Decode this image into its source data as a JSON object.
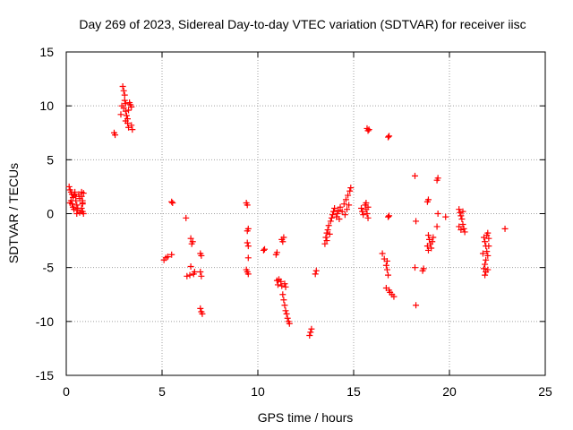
{
  "chart_data": {
    "type": "scatter",
    "title": "Day 269 of 2023, Sidereal Day-to-day VTEC variation (SDTVAR) for receiver iisc",
    "xlabel": "GPS time / hours",
    "ylabel": "SDTVAR / TECUs",
    "xlim": [
      0,
      25
    ],
    "ylim": [
      -15,
      15
    ],
    "xticks": [
      0,
      5,
      10,
      15,
      20,
      25
    ],
    "yticks": [
      -15,
      -10,
      -5,
      0,
      5,
      10,
      15
    ],
    "grid": true,
    "marker": "plus",
    "color": "#ff0000",
    "series": [
      {
        "name": "SDTVAR",
        "points": [
          [
            0.15,
            2.5
          ],
          [
            0.2,
            2.2
          ],
          [
            0.25,
            2.0
          ],
          [
            0.3,
            1.8
          ],
          [
            0.35,
            1.5
          ],
          [
            0.25,
            1.2
          ],
          [
            0.3,
            0.9
          ],
          [
            0.35,
            0.6
          ],
          [
            0.4,
            0.4
          ],
          [
            0.2,
            1.0
          ],
          [
            0.45,
            2.0
          ],
          [
            0.5,
            1.6
          ],
          [
            0.5,
            1.2
          ],
          [
            0.55,
            0.8
          ],
          [
            0.6,
            0.5
          ],
          [
            0.6,
            0.3
          ],
          [
            0.65,
            1.8
          ],
          [
            0.7,
            1.4
          ],
          [
            0.8,
            2.0
          ],
          [
            0.8,
            1.6
          ],
          [
            0.85,
            1.2
          ],
          [
            0.85,
            0.9
          ],
          [
            0.8,
            0.5
          ],
          [
            0.85,
            0.2
          ],
          [
            0.9,
            0.0
          ],
          [
            0.9,
            1.9
          ],
          [
            0.85,
            1.0
          ],
          [
            0.55,
            0.0
          ],
          [
            0.7,
            0.1
          ],
          [
            0.4,
            1.7
          ],
          [
            2.5,
            7.5
          ],
          [
            2.55,
            7.3
          ],
          [
            2.95,
            11.8
          ],
          [
            3.0,
            11.4
          ],
          [
            3.05,
            11.0
          ],
          [
            3.05,
            10.5
          ],
          [
            3.1,
            10.2
          ],
          [
            3.0,
            9.8
          ],
          [
            3.1,
            9.5
          ],
          [
            3.15,
            9.1
          ],
          [
            3.2,
            8.8
          ],
          [
            3.2,
            8.4
          ],
          [
            3.25,
            8.0
          ],
          [
            2.9,
            10.0
          ],
          [
            2.85,
            9.2
          ],
          [
            3.3,
            10.3
          ],
          [
            3.35,
            10.1
          ],
          [
            3.4,
            9.9
          ],
          [
            3.4,
            8.2
          ],
          [
            3.45,
            7.8
          ],
          [
            3.1,
            8.6
          ],
          [
            3.25,
            9.6
          ],
          [
            5.1,
            -4.3
          ],
          [
            5.2,
            -4.1
          ],
          [
            5.3,
            -4.0
          ],
          [
            5.5,
            -3.8
          ],
          [
            5.5,
            1.1
          ],
          [
            5.55,
            1.0
          ],
          [
            6.25,
            -0.4
          ],
          [
            6.3,
            -5.8
          ],
          [
            6.45,
            -5.7
          ],
          [
            6.5,
            -2.3
          ],
          [
            6.55,
            -2.8
          ],
          [
            6.6,
            -2.6
          ],
          [
            6.65,
            -5.6
          ],
          [
            6.7,
            -5.4
          ],
          [
            6.5,
            -4.9
          ],
          [
            7.0,
            -3.7
          ],
          [
            7.05,
            -3.9
          ],
          [
            7.0,
            -5.4
          ],
          [
            7.05,
            -5.8
          ],
          [
            7.0,
            -8.8
          ],
          [
            7.05,
            -9.1
          ],
          [
            7.1,
            -9.3
          ],
          [
            9.4,
            1.0
          ],
          [
            9.45,
            0.8
          ],
          [
            9.45,
            -1.6
          ],
          [
            9.5,
            -1.4
          ],
          [
            9.45,
            -2.7
          ],
          [
            9.5,
            -3.0
          ],
          [
            9.5,
            -4.1
          ],
          [
            9.4,
            -5.2
          ],
          [
            9.45,
            -5.4
          ],
          [
            9.5,
            -5.6
          ],
          [
            10.3,
            -3.4
          ],
          [
            10.35,
            -3.3
          ],
          [
            10.95,
            -3.8
          ],
          [
            11.0,
            -3.6
          ],
          [
            11.0,
            -6.2
          ],
          [
            11.05,
            -6.6
          ],
          [
            11.1,
            -6.1
          ],
          [
            11.2,
            -6.3
          ],
          [
            11.25,
            -6.7
          ],
          [
            11.3,
            -7.5
          ],
          [
            11.35,
            -8.0
          ],
          [
            11.4,
            -8.5
          ],
          [
            11.45,
            -9.0
          ],
          [
            11.5,
            -9.3
          ],
          [
            11.55,
            -9.7
          ],
          [
            11.6,
            -10.0
          ],
          [
            11.65,
            -10.2
          ],
          [
            11.25,
            -2.4
          ],
          [
            11.3,
            -2.6
          ],
          [
            11.35,
            -2.2
          ],
          [
            11.4,
            -6.5
          ],
          [
            11.45,
            -6.8
          ],
          [
            12.7,
            -11.3
          ],
          [
            12.75,
            -11.0
          ],
          [
            12.8,
            -10.7
          ],
          [
            13.0,
            -5.6
          ],
          [
            13.05,
            -5.3
          ],
          [
            13.5,
            -2.8
          ],
          [
            13.55,
            -2.2
          ],
          [
            13.6,
            -1.8
          ],
          [
            13.65,
            -1.5
          ],
          [
            13.7,
            -1.1
          ],
          [
            13.75,
            -1.9
          ],
          [
            13.8,
            -0.7
          ],
          [
            13.85,
            -0.4
          ],
          [
            13.9,
            -0.1
          ],
          [
            13.95,
            0.2
          ],
          [
            14.0,
            0.5
          ],
          [
            14.1,
            -0.3
          ],
          [
            14.15,
            0.0
          ],
          [
            14.2,
            0.3
          ],
          [
            14.3,
            0.6
          ],
          [
            14.4,
            0.2
          ],
          [
            14.5,
            0.9
          ],
          [
            14.6,
            1.3
          ],
          [
            14.7,
            1.7
          ],
          [
            14.8,
            2.1
          ],
          [
            14.85,
            2.4
          ],
          [
            14.75,
            0.8
          ],
          [
            14.65,
            0.4
          ],
          [
            14.55,
            -0.1
          ],
          [
            13.6,
            -2.5
          ],
          [
            14.25,
            -0.5
          ],
          [
            15.4,
            0.5
          ],
          [
            15.45,
            0.2
          ],
          [
            15.5,
            -0.1
          ],
          [
            15.6,
            0.8
          ],
          [
            15.65,
            0.4
          ],
          [
            15.7,
            0.0
          ],
          [
            15.75,
            -0.4
          ],
          [
            15.7,
            7.9
          ],
          [
            15.75,
            7.7
          ],
          [
            15.8,
            7.8
          ],
          [
            15.65,
            1.0
          ],
          [
            15.75,
            0.6
          ],
          [
            16.5,
            -3.7
          ],
          [
            16.6,
            -4.2
          ],
          [
            16.7,
            -4.8
          ],
          [
            16.75,
            -5.2
          ],
          [
            16.8,
            -5.7
          ],
          [
            16.75,
            -4.4
          ],
          [
            16.8,
            -0.3
          ],
          [
            16.85,
            -0.2
          ],
          [
            16.8,
            7.1
          ],
          [
            16.85,
            7.2
          ],
          [
            16.7,
            -6.9
          ],
          [
            16.85,
            -7.1
          ],
          [
            16.9,
            -7.3
          ],
          [
            17.0,
            -7.5
          ],
          [
            17.1,
            -7.7
          ],
          [
            18.2,
            3.5
          ],
          [
            18.25,
            -0.7
          ],
          [
            18.2,
            -5.0
          ],
          [
            18.25,
            -8.5
          ],
          [
            18.6,
            -5.3
          ],
          [
            18.65,
            -5.1
          ],
          [
            18.85,
            1.1
          ],
          [
            18.9,
            1.3
          ],
          [
            18.9,
            -2.0
          ],
          [
            18.95,
            -2.4
          ],
          [
            19.0,
            -2.8
          ],
          [
            19.05,
            -3.2
          ],
          [
            19.1,
            -2.6
          ],
          [
            19.15,
            -2.2
          ],
          [
            18.85,
            -3.0
          ],
          [
            18.9,
            -3.4
          ],
          [
            19.35,
            3.1
          ],
          [
            19.4,
            3.3
          ],
          [
            19.35,
            -1.2
          ],
          [
            19.4,
            0.0
          ],
          [
            19.8,
            -0.3
          ],
          [
            20.5,
            0.4
          ],
          [
            20.55,
            0.1
          ],
          [
            20.6,
            -0.2
          ],
          [
            20.65,
            -0.5
          ],
          [
            20.7,
            -1.0
          ],
          [
            20.75,
            -1.4
          ],
          [
            20.8,
            -1.7
          ],
          [
            20.5,
            -1.2
          ],
          [
            20.6,
            -1.5
          ],
          [
            20.7,
            0.2
          ],
          [
            21.8,
            -2.2
          ],
          [
            21.85,
            -2.6
          ],
          [
            21.9,
            -3.0
          ],
          [
            21.95,
            -3.5
          ],
          [
            22.0,
            -3.9
          ],
          [
            21.9,
            -4.3
          ],
          [
            21.85,
            -4.7
          ],
          [
            21.8,
            -5.1
          ],
          [
            21.9,
            -5.4
          ],
          [
            22.0,
            -5.2
          ],
          [
            21.95,
            -2.0
          ],
          [
            22.05,
            -2.3
          ],
          [
            22.0,
            -1.8
          ],
          [
            21.75,
            -3.7
          ],
          [
            22.05,
            -3.0
          ],
          [
            21.85,
            -5.7
          ],
          [
            22.9,
            -1.4
          ]
        ]
      }
    ]
  }
}
